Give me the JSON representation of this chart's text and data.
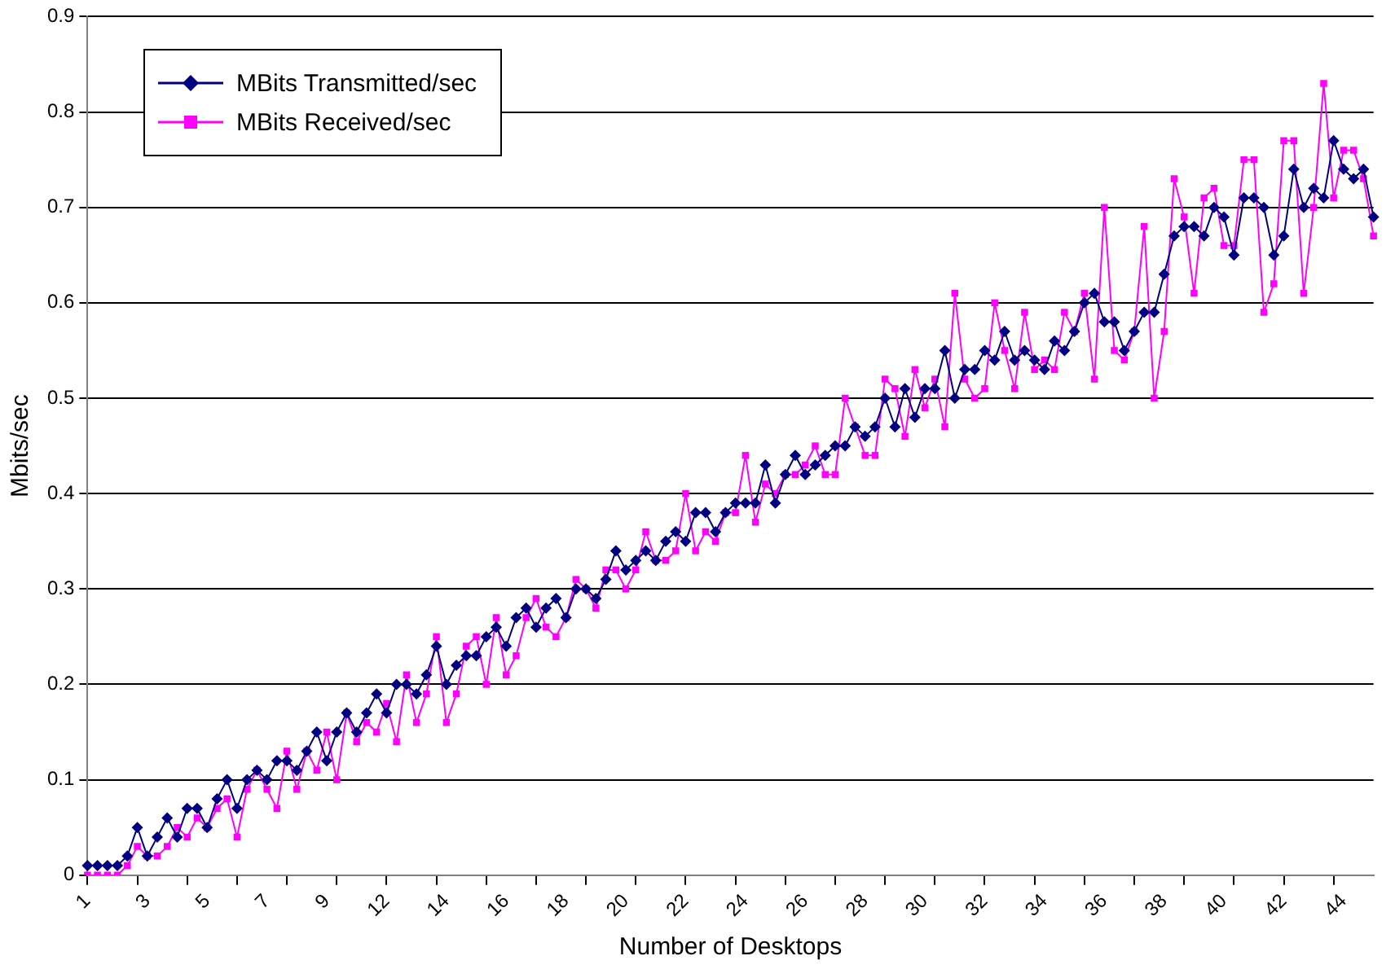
{
  "chart_data": {
    "type": "line",
    "xlabel": "Number of Desktops",
    "ylabel": "Mbits/sec",
    "categories": [
      "1",
      null,
      null,
      null,
      null,
      null,
      "3",
      null,
      null,
      null,
      null,
      null,
      "5",
      null,
      null,
      null,
      null,
      null,
      "7",
      null,
      null,
      null,
      null,
      null,
      "9",
      null,
      null,
      null,
      null,
      null,
      "12",
      null,
      null,
      null,
      null,
      null,
      "14",
      null,
      null,
      null,
      null,
      null,
      "16",
      null,
      null,
      null,
      null,
      null,
      "18",
      null,
      null,
      null,
      null,
      null,
      "20",
      null,
      null,
      null,
      null,
      null,
      "22",
      null,
      null,
      null,
      null,
      null,
      "24",
      null,
      null,
      null,
      null,
      null,
      "26",
      null,
      null,
      null,
      null,
      null,
      "28",
      null,
      null,
      null,
      null,
      null,
      "30",
      null,
      null,
      null,
      null,
      null,
      "32",
      null,
      null,
      null,
      null,
      null,
      "34",
      null,
      null,
      null,
      null,
      null,
      "36",
      null,
      null,
      null,
      null,
      null,
      "38",
      null,
      null,
      null,
      null,
      null,
      "40",
      null,
      null,
      null,
      null,
      null,
      "42",
      null,
      null,
      null,
      null,
      null,
      "44",
      null,
      null,
      null
    ],
    "series": [
      {
        "name": "MBits Transmitted/sec",
        "color": "#000080",
        "marker": "diamond",
        "values": [
          0.01,
          0.01,
          0.01,
          0.01,
          0.02,
          0.05,
          0.02,
          0.04,
          0.06,
          0.04,
          0.07,
          0.07,
          0.05,
          0.08,
          0.1,
          0.07,
          0.1,
          0.11,
          0.1,
          0.12,
          0.12,
          0.11,
          0.13,
          0.15,
          0.12,
          0.15,
          0.17,
          0.15,
          0.17,
          0.19,
          0.17,
          0.2,
          0.2,
          0.19,
          0.21,
          0.24,
          0.2,
          0.22,
          0.23,
          0.23,
          0.25,
          0.26,
          0.24,
          0.27,
          0.28,
          0.26,
          0.28,
          0.29,
          0.27,
          0.3,
          0.3,
          0.29,
          0.31,
          0.34,
          0.32,
          0.33,
          0.34,
          0.33,
          0.35,
          0.36,
          0.35,
          0.38,
          0.38,
          0.36,
          0.38,
          0.39,
          0.39,
          0.39,
          0.43,
          0.39,
          0.42,
          0.44,
          0.42,
          0.43,
          0.44,
          0.45,
          0.45,
          0.47,
          0.46,
          0.47,
          0.5,
          0.47,
          0.51,
          0.48,
          0.51,
          0.51,
          0.55,
          0.5,
          0.53,
          0.53,
          0.55,
          0.54,
          0.57,
          0.54,
          0.55,
          0.54,
          0.53,
          0.56,
          0.55,
          0.57,
          0.6,
          0.61,
          0.58,
          0.58,
          0.55,
          0.57,
          0.59,
          0.59,
          0.63,
          0.67,
          0.68,
          0.68,
          0.67,
          0.7,
          0.69,
          0.65,
          0.71,
          0.71,
          0.7,
          0.65,
          0.67,
          0.74,
          0.7,
          0.72,
          0.71,
          0.77,
          0.74,
          0.73,
          0.74,
          0.69
        ]
      },
      {
        "name": "MBits Received/sec",
        "color": "#ff00ff",
        "marker": "square",
        "values": [
          0,
          0,
          0,
          0,
          0.01,
          0.03,
          0.02,
          0.02,
          0.03,
          0.05,
          0.04,
          0.06,
          0.05,
          0.07,
          0.08,
          0.04,
          0.09,
          0.11,
          0.09,
          0.07,
          0.13,
          0.09,
          0.13,
          0.11,
          0.15,
          0.1,
          0.17,
          0.14,
          0.16,
          0.15,
          0.18,
          0.14,
          0.21,
          0.16,
          0.19,
          0.25,
          0.16,
          0.19,
          0.24,
          0.25,
          0.2,
          0.27,
          0.21,
          0.23,
          0.27,
          0.29,
          0.26,
          0.25,
          0.27,
          0.31,
          0.3,
          0.28,
          0.32,
          0.32,
          0.3,
          0.32,
          0.36,
          0.33,
          0.33,
          0.34,
          0.4,
          0.34,
          0.36,
          0.35,
          0.38,
          0.38,
          0.44,
          0.37,
          0.41,
          0.4,
          0.42,
          0.42,
          0.43,
          0.45,
          0.42,
          0.42,
          0.5,
          0.47,
          0.44,
          0.44,
          0.52,
          0.51,
          0.46,
          0.53,
          0.49,
          0.52,
          0.47,
          0.61,
          0.52,
          0.5,
          0.51,
          0.6,
          0.55,
          0.51,
          0.59,
          0.53,
          0.54,
          0.53,
          0.59,
          0.57,
          0.61,
          0.52,
          0.7,
          0.55,
          0.54,
          0.57,
          0.68,
          0.5,
          0.57,
          0.73,
          0.69,
          0.61,
          0.71,
          0.72,
          0.66,
          0.66,
          0.75,
          0.75,
          0.59,
          0.62,
          0.77,
          0.77,
          0.61,
          0.7,
          0.83,
          0.71,
          0.76,
          0.76,
          0.73,
          0.67
        ]
      }
    ],
    "ylim": [
      0,
      0.9
    ],
    "yticks": [
      0,
      0.1,
      0.2,
      0.3,
      0.4,
      0.5,
      0.6,
      0.7,
      0.8,
      0.9
    ],
    "grid": "y",
    "legend": "top left"
  }
}
